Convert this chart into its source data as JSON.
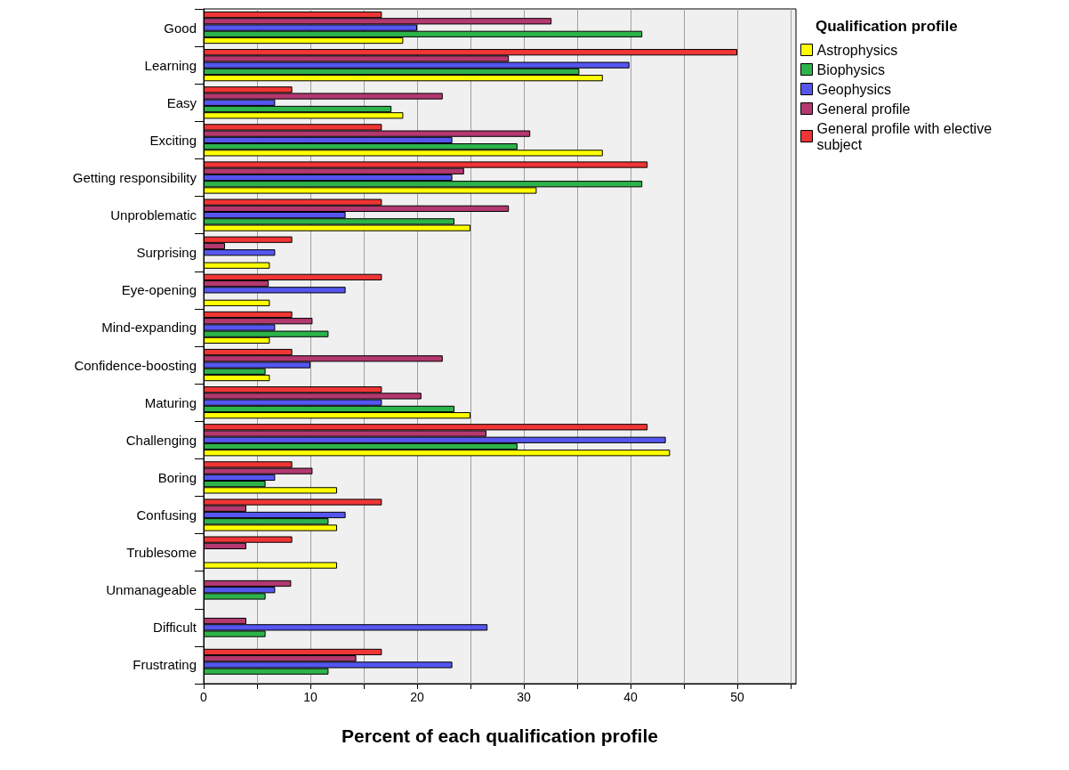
{
  "chart_data": {
    "type": "bar",
    "orientation": "horizontal",
    "xlabel": "Percent of each qualification profile",
    "legend_title": "Qualification profile",
    "legend": "top right",
    "grid": "x",
    "categories": [
      "Good",
      "Learning",
      "Easy",
      "Exciting",
      "Getting responsibility",
      "Unproblematic",
      "Surprising",
      "Eye-opening",
      "Mind-expanding",
      "Confidence-boosting",
      "Maturing",
      "Challenging",
      "Boring",
      "Confusing",
      "Trublesome",
      "Unmanageable",
      "Difficult",
      "Frustrating"
    ],
    "xlim": [
      0,
      55.5
    ],
    "xticks": [
      0,
      {
        "value": 5,
        "label": null
      },
      10,
      {
        "value": 15,
        "label": null
      },
      20,
      {
        "value": 25,
        "label": null
      },
      30,
      {
        "value": 35,
        "label": null
      },
      40,
      {
        "value": 45,
        "label": null
      },
      50,
      {
        "value": 55,
        "label": null
      }
    ],
    "series": [
      {
        "name": "Astrophysics",
        "color": "#ffff00",
        "values": [
          18.7,
          37.4,
          18.7,
          37.4,
          31.2,
          25.0,
          6.2,
          6.2,
          6.2,
          6.2,
          25.0,
          43.7,
          12.5,
          12.5,
          12.5,
          null,
          null,
          null
        ]
      },
      {
        "name": "Biophysics",
        "color": "#2db34a",
        "values": [
          41.1,
          35.2,
          17.6,
          29.4,
          41.1,
          23.5,
          null,
          null,
          11.7,
          5.8,
          23.5,
          29.4,
          5.8,
          11.7,
          null,
          5.8,
          5.8,
          11.7
        ]
      },
      {
        "name": "Geophysics",
        "color": "#5555f0",
        "values": [
          20.0,
          39.9,
          6.7,
          23.3,
          23.3,
          13.3,
          6.7,
          13.3,
          6.7,
          10.0,
          16.7,
          43.3,
          6.7,
          13.3,
          null,
          6.7,
          26.6,
          23.3
        ]
      },
      {
        "name": "General profile",
        "color": "#b3386f",
        "values": [
          32.6,
          28.6,
          22.4,
          30.6,
          24.4,
          28.6,
          2.0,
          6.1,
          10.2,
          22.4,
          20.4,
          26.5,
          10.2,
          4.0,
          4.0,
          8.2,
          4.0,
          14.3
        ]
      },
      {
        "name": "General profile with elective subject",
        "color": "#f03535",
        "values": [
          16.7,
          50.0,
          8.3,
          16.7,
          41.6,
          16.7,
          8.3,
          16.7,
          8.3,
          8.3,
          16.7,
          41.6,
          8.3,
          16.7,
          8.3,
          null,
          null,
          16.7
        ]
      }
    ]
  }
}
